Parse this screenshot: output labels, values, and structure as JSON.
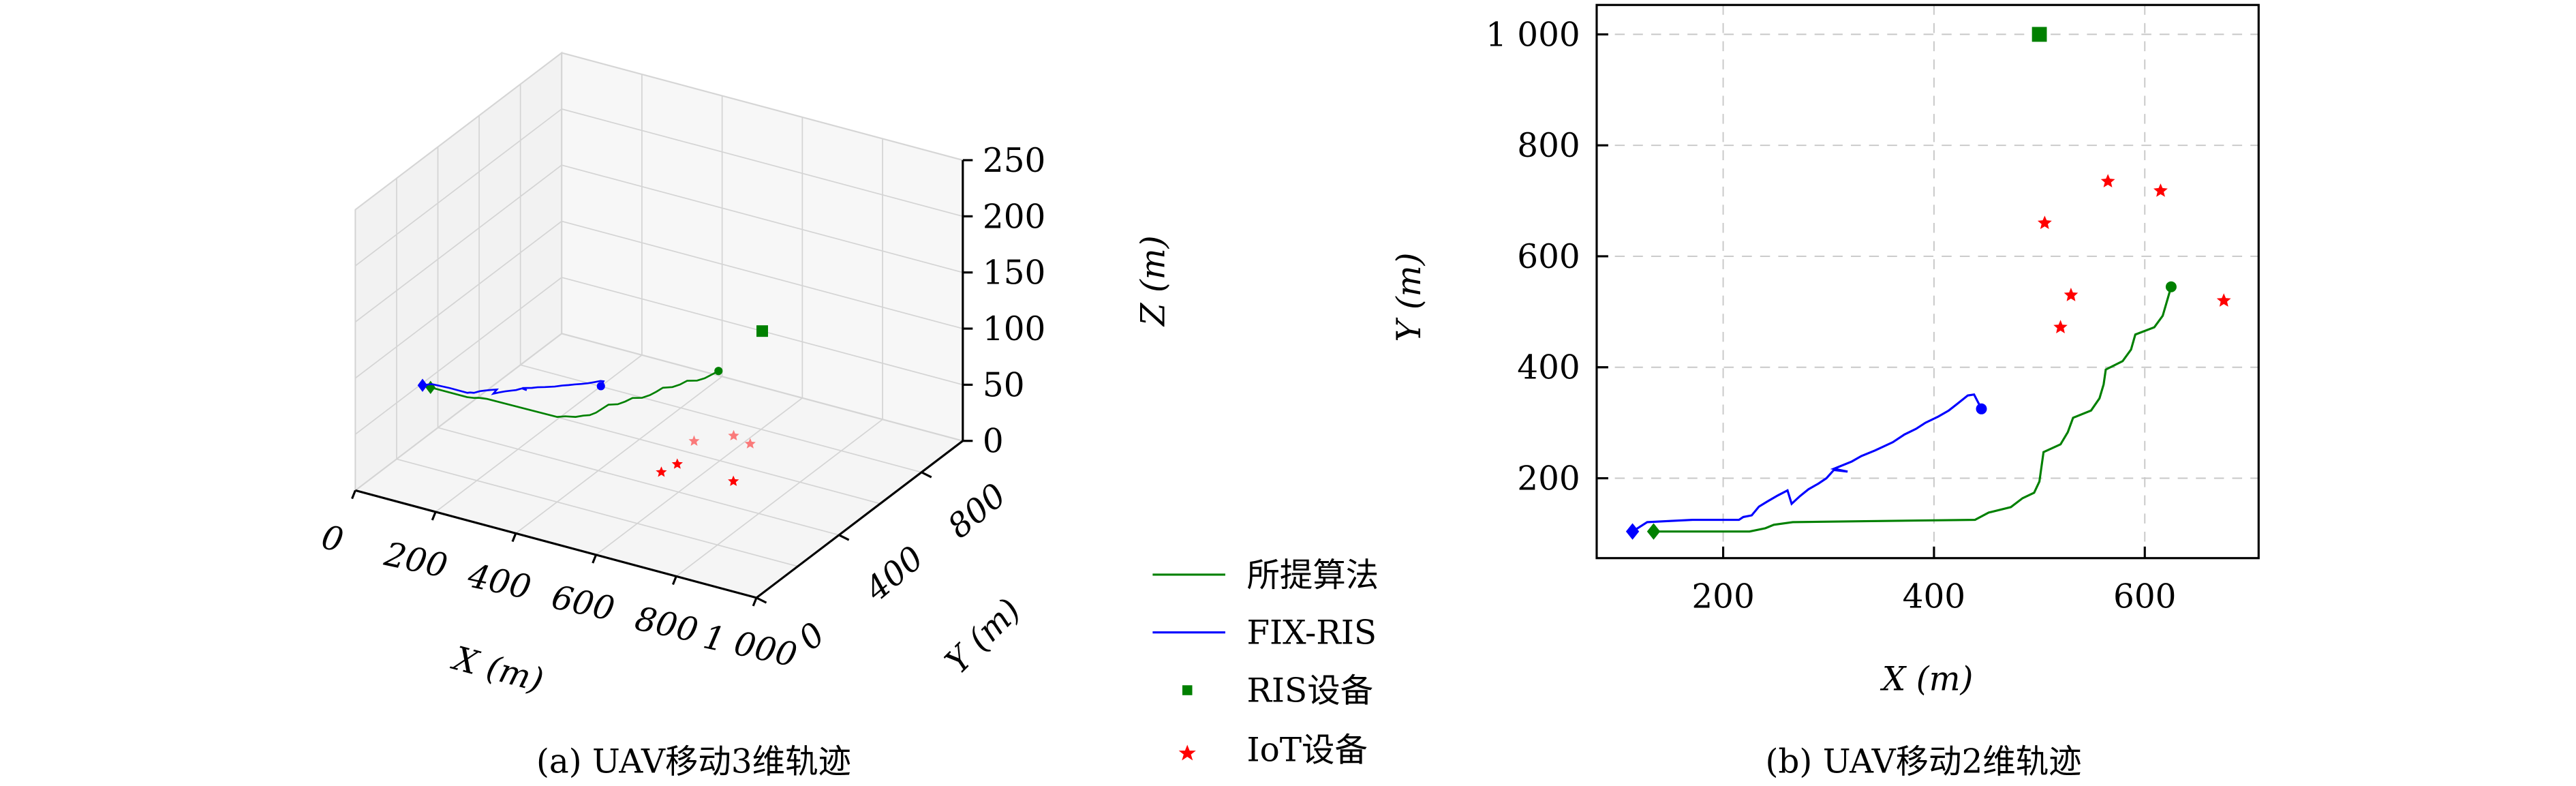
{
  "legend": {
    "items": [
      {
        "label": "所提算法",
        "color": "#008000",
        "marker": "line"
      },
      {
        "label": "FIX-RIS",
        "color": "#0000ff",
        "marker": "line"
      },
      {
        "label": "RIS设备",
        "color": "#008000",
        "marker": "square"
      },
      {
        "label": "IoT设备",
        "color": "#ff0000",
        "marker": "star"
      }
    ]
  },
  "captions": {
    "a": "(a) UAV移动3维轨迹",
    "b": "(b) UAV移动2维轨迹"
  },
  "chart_data": [
    {
      "type": "line",
      "projection": "3d",
      "xlabel": "X (m)",
      "ylabel": "Y (m)",
      "zlabel": "Z (m)",
      "xlim": [
        0,
        1000
      ],
      "ylim": [
        0,
        1000
      ],
      "zlim": [
        0,
        250
      ],
      "xticks": [
        "0",
        "200",
        "400",
        "600",
        "800",
        "1 000"
      ],
      "yticks": [
        "0",
        "400",
        "800"
      ],
      "zticks": [
        "0",
        "50",
        "100",
        "150",
        "200",
        "250"
      ],
      "grid": true,
      "series_ref": "same trajectories as 2D view, flying at constant altitude",
      "uav_altitude": 90,
      "ris_altitude": 50,
      "iot_altitude": 0
    },
    {
      "type": "line",
      "xlabel": "X (m)",
      "ylabel": "Y (m)",
      "xlim": [
        80,
        708
      ],
      "ylim": [
        56,
        1053
      ],
      "xticks": [
        200,
        400,
        600
      ],
      "yticks": [
        200,
        400,
        600,
        800,
        1000
      ],
      "ytick_labels": [
        "200",
        "400",
        "600",
        "800",
        "1 000"
      ],
      "grid": true,
      "series": [
        {
          "name": "所提算法",
          "color": "#008000",
          "x": [
            134,
            225,
            240,
            248,
            266,
            439,
            452,
            473,
            484,
            495,
            500,
            504,
            520,
            527,
            532,
            549,
            557,
            561,
            563,
            579,
            587,
            591,
            609,
            617,
            625
          ],
          "y": [
            104,
            104,
            110,
            116,
            121,
            125,
            138,
            148,
            164,
            174,
            194,
            247,
            261,
            283,
            309,
            322,
            344,
            369,
            396,
            411,
            432,
            459,
            472,
            493,
            545
          ]
        },
        {
          "name": "FIX-RIS",
          "color": "#0000ff",
          "x": [
            114,
            128,
            171,
            215,
            219,
            227,
            234,
            242,
            252,
            261,
            265,
            273,
            281,
            290,
            298,
            305,
            318,
            305,
            322,
            331,
            344,
            361,
            372,
            383,
            392,
            404,
            414,
            422,
            432,
            438,
            445
          ],
          "y": [
            104,
            121,
            125,
            125,
            130,
            133,
            149,
            158,
            169,
            178,
            154,
            168,
            180,
            190,
            200,
            215,
            212,
            217,
            230,
            240,
            250,
            265,
            279,
            289,
            300,
            311,
            322,
            334,
            349,
            351,
            325
          ]
        }
      ],
      "ris": {
        "name": "RIS设备",
        "x": 500,
        "y": 1000
      },
      "iot": {
        "name": "IoT设备",
        "points": [
          [
            505,
            660
          ],
          [
            565,
            735
          ],
          [
            615,
            718
          ],
          [
            530,
            530
          ],
          [
            520,
            472
          ],
          [
            675,
            520
          ]
        ]
      }
    }
  ]
}
